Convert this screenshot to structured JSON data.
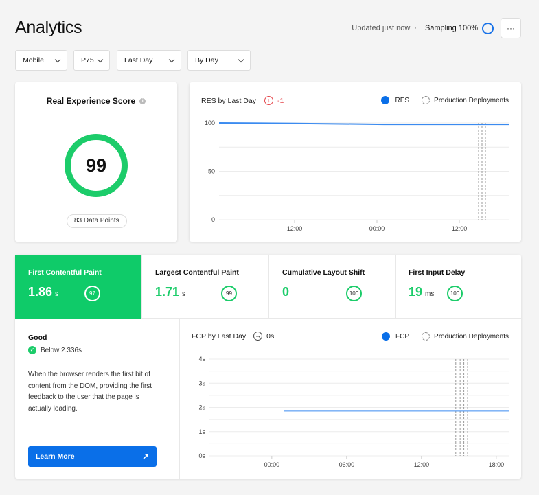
{
  "header": {
    "title": "Analytics",
    "updated": "Updated just now",
    "separator": "·",
    "sampling": "Sampling 100%",
    "more_label": "···"
  },
  "filters": [
    {
      "value": "Mobile"
    },
    {
      "value": "P75"
    },
    {
      "value": "Last Day"
    },
    {
      "value": "By Day"
    }
  ],
  "score_card": {
    "title": "Real Experience Score",
    "info": "i",
    "score": "99",
    "data_points": "83 Data Points"
  },
  "res_chart": {
    "title": "RES by Last Day",
    "delta": "-1",
    "delta_color": "#e5484d",
    "legend_series": "RES",
    "legend_deploy": "Production Deployments"
  },
  "metrics": [
    {
      "label": "First Contentful Paint",
      "value": "1.86",
      "unit": "s",
      "score": "97",
      "active": true
    },
    {
      "label": "Largest Contentful Paint",
      "value": "1.71",
      "unit": "s",
      "score": "99"
    },
    {
      "label": "Cumulative Layout Shift",
      "value": "0",
      "unit": "",
      "score": "100"
    },
    {
      "label": "First Input Delay",
      "value": "19",
      "unit": "ms",
      "score": "100"
    }
  ],
  "detail": {
    "status": "Good",
    "threshold": "Below 2.336s",
    "description": "When the browser renders the first bit of content from the DOM, providing the first feedback to the user that the page is actually loading.",
    "learn_more": "Learn More"
  },
  "fcp_chart": {
    "title": "FCP by Last Day",
    "delta": "0s",
    "legend_series": "FCP",
    "legend_deploy": "Production Deployments"
  },
  "colors": {
    "good": "#0fcb69",
    "accent": "#0a6fe8"
  },
  "chart_data": [
    {
      "type": "line",
      "title": "RES by Last Day",
      "ylim": [
        0,
        100
      ],
      "yticks": [
        "0",
        "50",
        "100"
      ],
      "grid": true,
      "xticks": [
        {
          "h": 12,
          "label": "12:00"
        },
        {
          "h": 24,
          "label": "00:00"
        },
        {
          "h": 36,
          "label": "12:00"
        }
      ],
      "xlim": [
        1,
        43.2
      ],
      "series": [
        {
          "name": "RES",
          "x": [
            1,
            12,
            25,
            43.2
          ],
          "y": [
            100,
            99.5,
            98.5,
            98.5
          ]
        }
      ],
      "deployments": [
        38.8,
        39.3,
        39.8
      ],
      "legend": "top-right"
    },
    {
      "type": "line",
      "title": "FCP by Last Day",
      "ylim": [
        0,
        4
      ],
      "yticks": [
        "0s",
        "1s",
        "2s",
        "3s",
        "4s"
      ],
      "grid": true,
      "xticks": [
        {
          "h": 0,
          "label": "00:00"
        },
        {
          "h": 6,
          "label": "06:00"
        },
        {
          "h": 12,
          "label": "12:00"
        },
        {
          "h": 18,
          "label": "18:00"
        }
      ],
      "xlim": [
        -5,
        19
      ],
      "series": [
        {
          "name": "FCP",
          "x": [
            1,
            19
          ],
          "y": [
            1.86,
            1.86
          ]
        }
      ],
      "deployments": [
        14.75,
        15.1,
        15.4,
        15.7
      ],
      "legend": "top-right"
    }
  ]
}
